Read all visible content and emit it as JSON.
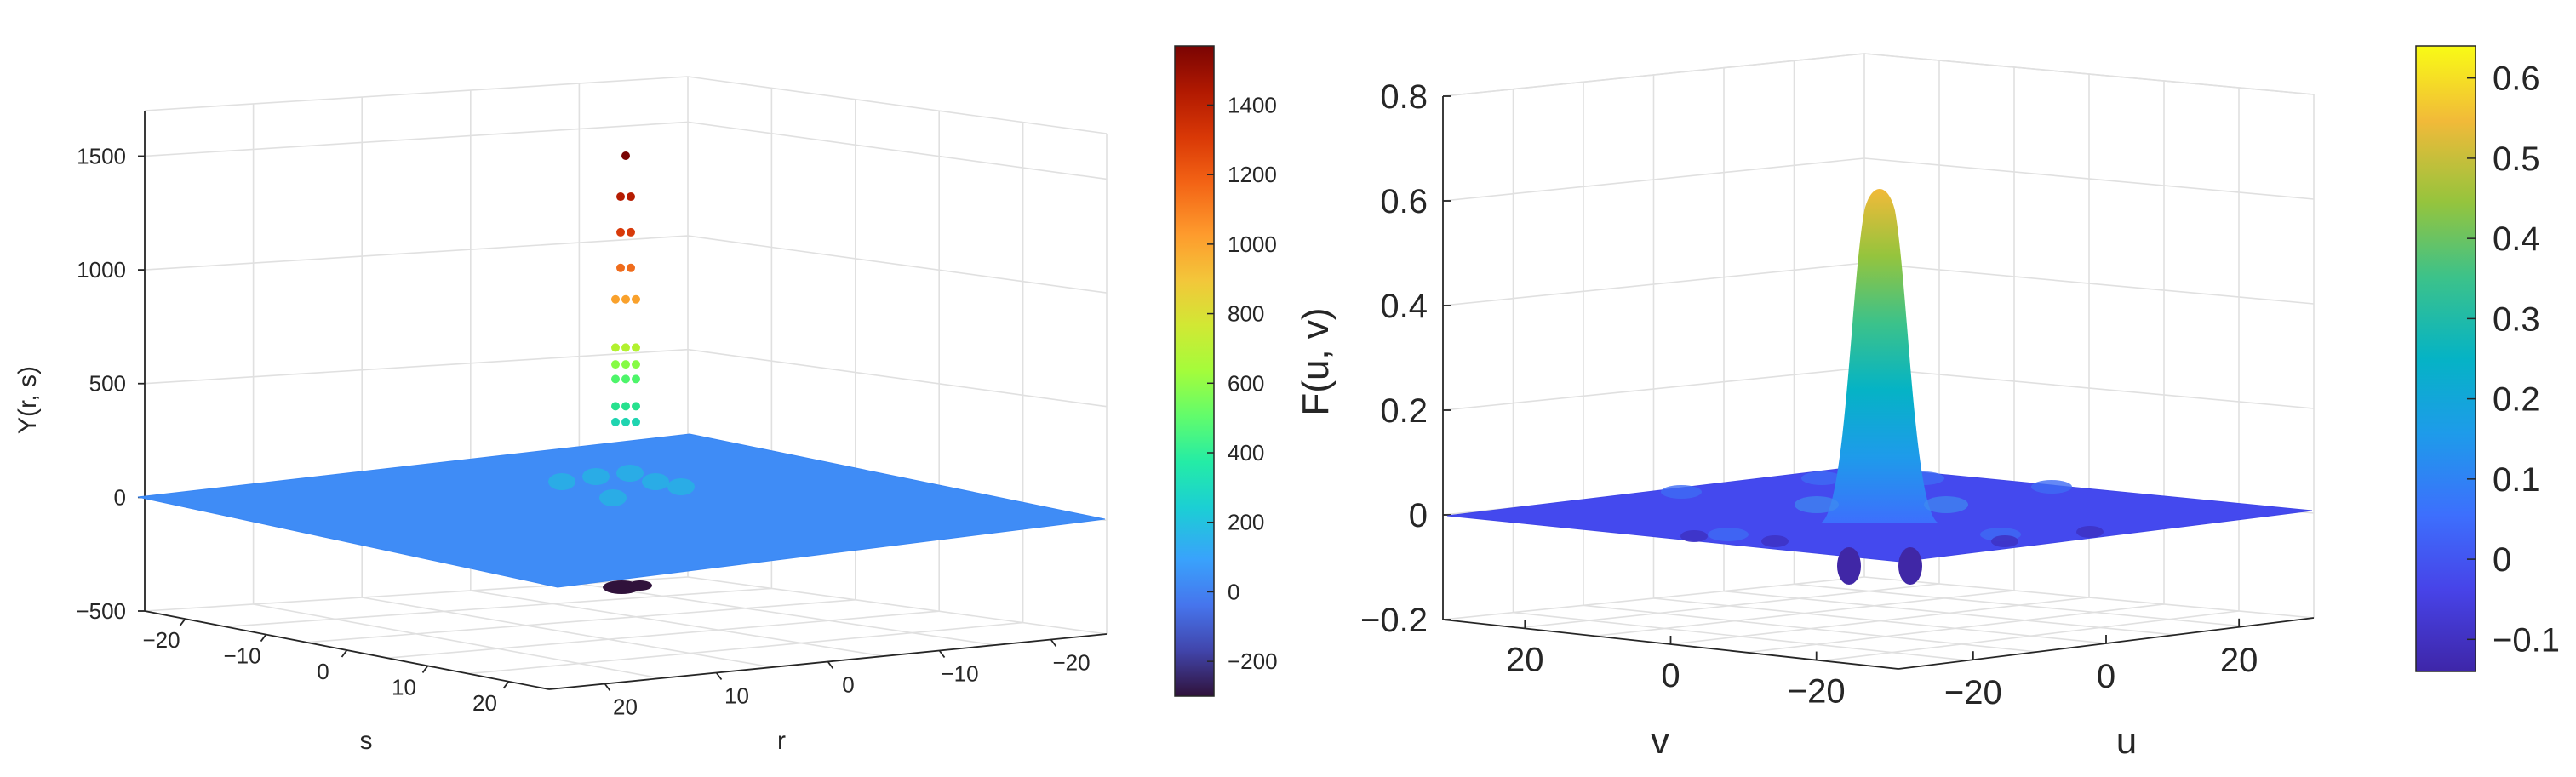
{
  "chart_data": [
    {
      "type": "scatter3d",
      "title": "",
      "xlabel": "r",
      "ylabel": "s",
      "zlabel": "Y(r, s)",
      "xlim": [
        -25,
        25
      ],
      "ylim": [
        -25,
        25
      ],
      "zlim": [
        -500,
        1700
      ],
      "x_ticks": [
        "20",
        "10",
        "0",
        "−10",
        "−20"
      ],
      "y_ticks": [
        "−20",
        "−10",
        "0",
        "10",
        "20"
      ],
      "z_ticks": [
        "−500",
        "0",
        "500",
        "1000",
        "1500"
      ],
      "grid": true,
      "colormap": "turbo",
      "colorbar": {
        "range": [
          -300,
          1570
        ],
        "ticks": [
          "−200",
          "0",
          "200",
          "400",
          "600",
          "800",
          "1000",
          "1200",
          "1400"
        ]
      },
      "peak_points": [
        {
          "z": 1510,
          "color": "#7a0403"
        },
        {
          "z": 1315,
          "color": "#b51c02"
        },
        {
          "z": 1145,
          "color": "#d83a0a"
        },
        {
          "z": 975,
          "color": "#ef6c1c"
        },
        {
          "z": 825,
          "color": "#f9a12c"
        },
        {
          "z": 595,
          "color": "#b2f12f"
        },
        {
          "z": 515,
          "color": "#86fb45"
        },
        {
          "z": 445,
          "color": "#4df56a"
        },
        {
          "z": 315,
          "color": "#27e18e"
        },
        {
          "z": 240,
          "color": "#1fd4b0"
        }
      ],
      "trough_min": -300,
      "base_value": 0
    },
    {
      "type": "surface3d",
      "title": "",
      "xlabel": "u",
      "ylabel": "v",
      "zlabel": "F(u, v)",
      "xlim": [
        -30,
        30
      ],
      "ylim": [
        -30,
        30
      ],
      "zlim": [
        -0.2,
        0.8
      ],
      "x_ticks": [
        "−20",
        "0",
        "20"
      ],
      "y_ticks": [
        "20",
        "0",
        "−20"
      ],
      "z_ticks": [
        "−0.2",
        "0",
        "0.2",
        "0.4",
        "0.6",
        "0.8"
      ],
      "grid": true,
      "colormap": "parula",
      "colorbar": {
        "range": [
          -0.14,
          0.64
        ],
        "ticks": [
          "−0.1",
          "0",
          "0.1",
          "0.2",
          "0.3",
          "0.4",
          "0.5",
          "0.6"
        ]
      },
      "peak_value": 0.63,
      "min_value": -0.13
    }
  ]
}
